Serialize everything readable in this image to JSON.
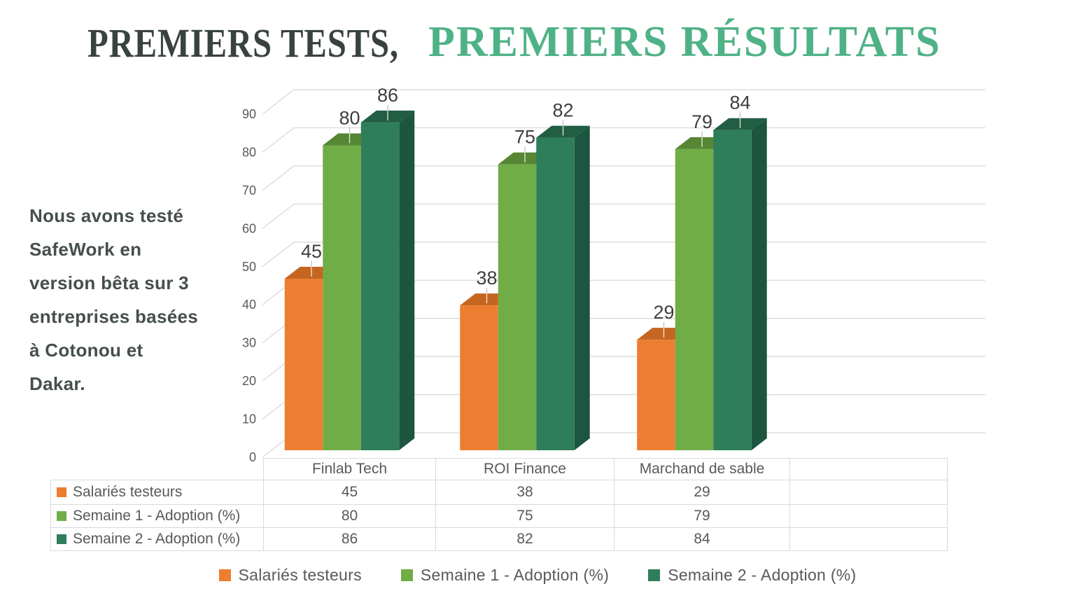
{
  "title": {
    "dark": "PREMIERS TESTS,",
    "green": "PREMIERS RÉSULTATS"
  },
  "intro_text": "Nous avons testé\nSafeWork en\nversion bêta sur 3\nentreprises basées\nà Cotonou et\nDakar.",
  "colors": {
    "title_dark": "#39433E",
    "title_green": "#4FB286",
    "intro_text": "#454F4B",
    "axis_text": "#595959",
    "data_label_text": "#3F3F3F",
    "gridline": "#D9D9D9",
    "table_border": "#D9D9D9",
    "table_text": "#595959",
    "legend_text": "#595959",
    "leader_line": "#BFBFBF"
  },
  "chart_data": {
    "type": "bar",
    "style": "3d-clustered-column",
    "title": "",
    "xlabel": "",
    "ylabel": "",
    "categories": [
      "Finlab Tech",
      "ROI Finance",
      "Marchand de sable"
    ],
    "series": [
      {
        "name": "Salariés testeurs",
        "values": [
          45,
          38,
          29
        ],
        "color": "#ED7D31",
        "color_top": "#C4661F",
        "color_side": "#A35518"
      },
      {
        "name": "Semaine 1 - Adoption (%)",
        "values": [
          80,
          75,
          79
        ],
        "color": "#70AD47",
        "color_top": "#578635",
        "color_side": "#48702C"
      },
      {
        "name": "Semaine 2 - Adoption (%)",
        "values": [
          86,
          82,
          84
        ],
        "color": "#2E7E5B",
        "color_top": "#215E43",
        "color_side": "#1D5640"
      }
    ],
    "y_axis": {
      "min": 0,
      "max": 90,
      "step": 10,
      "tick_labels": [
        "0",
        "10",
        "20",
        "30",
        "40",
        "50",
        "60",
        "70",
        "80",
        "90"
      ]
    },
    "ylim": [
      0,
      90
    ],
    "gridlines": true,
    "data_labels_shown": true,
    "legend_position": "bottom",
    "data_table_shown": true,
    "table": {
      "column_headers": [
        "Finlab Tech",
        "ROI Finance",
        "Marchand de sable",
        ""
      ],
      "rows": [
        {
          "label": "Salariés testeurs",
          "values": [
            "45",
            "38",
            "29",
            ""
          ]
        },
        {
          "label": "Semaine 1 - Adoption (%)",
          "values": [
            "80",
            "75",
            "79",
            ""
          ]
        },
        {
          "label": "Semaine 2 - Adoption (%)",
          "values": [
            "86",
            "82",
            "84",
            ""
          ]
        }
      ]
    }
  }
}
